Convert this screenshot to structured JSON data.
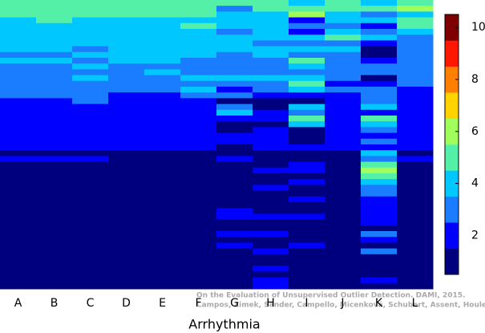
{
  "chart_data": {
    "type": "heatmap",
    "x_label": "Arrhythmia",
    "annotations": [
      "On the Evaluation of Unsupervised Outlier Detection. DAMI, 2015.",
      "Campos, Zimek, Sander, Campello, Micenková, Schubert, Assent, Houle"
    ],
    "categories": [
      "A",
      "B",
      "C",
      "D",
      "E",
      "F",
      "G",
      "H",
      "I",
      "J",
      "K",
      "L"
    ],
    "values": [
      [
        5,
        5,
        5,
        4,
        4,
        4,
        4,
        4,
        4,
        3,
        4,
        3,
        3,
        3,
        3,
        3,
        3,
        2,
        2,
        2,
        2,
        2,
        2,
        2,
        2,
        2,
        1,
        2,
        1,
        1,
        1,
        1,
        1,
        1,
        1,
        1,
        1,
        1,
        1,
        1,
        1,
        1,
        1,
        1,
        1,
        1,
        1,
        1,
        1,
        1
      ],
      [
        5,
        5,
        5,
        5,
        4,
        4,
        4,
        4,
        4,
        3,
        4,
        3,
        3,
        3,
        3,
        3,
        3,
        2,
        2,
        2,
        2,
        2,
        2,
        2,
        2,
        2,
        1,
        2,
        1,
        1,
        1,
        1,
        1,
        1,
        1,
        1,
        1,
        1,
        1,
        1,
        1,
        1,
        1,
        1,
        1,
        1,
        1,
        1,
        1,
        1
      ],
      [
        5,
        5,
        5,
        4,
        4,
        4,
        4,
        4,
        3,
        4,
        3,
        4,
        3,
        4,
        3,
        3,
        3,
        3,
        2,
        2,
        2,
        2,
        2,
        2,
        2,
        2,
        1,
        2,
        1,
        1,
        1,
        1,
        1,
        1,
        1,
        1,
        1,
        1,
        1,
        1,
        1,
        1,
        1,
        1,
        1,
        1,
        1,
        1,
        1,
        1
      ],
      [
        5,
        5,
        5,
        4,
        4,
        4,
        4,
        4,
        4,
        4,
        4,
        3,
        3,
        3,
        3,
        3,
        2,
        2,
        2,
        2,
        2,
        2,
        2,
        2,
        2,
        2,
        1,
        1,
        1,
        1,
        1,
        1,
        1,
        1,
        1,
        1,
        1,
        1,
        1,
        1,
        1,
        1,
        1,
        1,
        1,
        1,
        1,
        1,
        1,
        1
      ],
      [
        5,
        5,
        5,
        4,
        4,
        4,
        4,
        4,
        4,
        4,
        4,
        3,
        4,
        3,
        3,
        3,
        2,
        2,
        2,
        2,
        2,
        2,
        2,
        2,
        2,
        2,
        1,
        1,
        1,
        1,
        1,
        1,
        1,
        1,
        1,
        1,
        1,
        1,
        1,
        1,
        1,
        1,
        1,
        1,
        1,
        1,
        1,
        1,
        1,
        1
      ],
      [
        5,
        5,
        5,
        4,
        5,
        4,
        4,
        4,
        4,
        4,
        3,
        3,
        3,
        4,
        3,
        4,
        3,
        2,
        2,
        2,
        2,
        2,
        2,
        2,
        2,
        2,
        1,
        1,
        1,
        1,
        1,
        1,
        1,
        1,
        1,
        1,
        1,
        1,
        1,
        1,
        1,
        1,
        1,
        1,
        1,
        1,
        1,
        1,
        1,
        1
      ],
      [
        5,
        3,
        4,
        4,
        4,
        3,
        4,
        4,
        4,
        3,
        3,
        3,
        3,
        4,
        3,
        2,
        3,
        1,
        3,
        4,
        2,
        1,
        1,
        2,
        2,
        1,
        1,
        2,
        1,
        1,
        1,
        1,
        1,
        1,
        1,
        1,
        2,
        2,
        1,
        1,
        2,
        1,
        2,
        1,
        1,
        1,
        1,
        1,
        1,
        1
      ],
      [
        5,
        5,
        4,
        4,
        4,
        4,
        4,
        3,
        4,
        4,
        3,
        3,
        3,
        4,
        3,
        3,
        2,
        1,
        1,
        2,
        2,
        1,
        2,
        2,
        2,
        2,
        1,
        1,
        1,
        2,
        1,
        1,
        2,
        1,
        1,
        1,
        1,
        2,
        1,
        1,
        2,
        1,
        1,
        2,
        1,
        1,
        2,
        1,
        2,
        2
      ],
      [
        4,
        5,
        6,
        2,
        3,
        2,
        4,
        3,
        4,
        3,
        5,
        4,
        3,
        4,
        5,
        4,
        2,
        1,
        4,
        3,
        5,
        4,
        1,
        1,
        1,
        2,
        1,
        1,
        2,
        2,
        1,
        2,
        1,
        1,
        2,
        1,
        1,
        2,
        1,
        1,
        1,
        1,
        2,
        1,
        1,
        1,
        1,
        1,
        1,
        1
      ],
      [
        5,
        5,
        4,
        4,
        3,
        4,
        5,
        3,
        4,
        3,
        3,
        3,
        3,
        3,
        2,
        3,
        2,
        2,
        2,
        2,
        2,
        2,
        2,
        2,
        2,
        2,
        1,
        1,
        1,
        1,
        1,
        1,
        1,
        1,
        1,
        1,
        1,
        1,
        1,
        1,
        1,
        1,
        1,
        1,
        1,
        1,
        1,
        1,
        1,
        1
      ],
      [
        4,
        5,
        3,
        4,
        2,
        3,
        4,
        2,
        1,
        1,
        2,
        3,
        3,
        1,
        2,
        3,
        3,
        3,
        4,
        2,
        5,
        4,
        3,
        2,
        3,
        2,
        4,
        3,
        5,
        6,
        5,
        4,
        3,
        3,
        2,
        2,
        2,
        2,
        2,
        1,
        3,
        2,
        1,
        3,
        1,
        1,
        1,
        1,
        2,
        1
      ],
      [
        5,
        6,
        4,
        5,
        5,
        4,
        3,
        3,
        3,
        3,
        3,
        3,
        3,
        3,
        3,
        2,
        2,
        2,
        2,
        2,
        2,
        2,
        2,
        2,
        2,
        2,
        1,
        2,
        1,
        1,
        1,
        1,
        1,
        1,
        1,
        1,
        1,
        1,
        1,
        1,
        1,
        1,
        1,
        1,
        1,
        1,
        1,
        1,
        1,
        1
      ]
    ],
    "colors": [
      "#00007f",
      "#0000ff",
      "#1a7dff",
      "#00c8ff",
      "#55f0a8",
      "#a0ff5a",
      "#ffd200",
      "#ff7f00",
      "#ff1800",
      "#7f0000"
    ],
    "clim": [
      0.5,
      10.5
    ],
    "cticks": [
      2,
      4,
      6,
      8,
      10
    ]
  }
}
